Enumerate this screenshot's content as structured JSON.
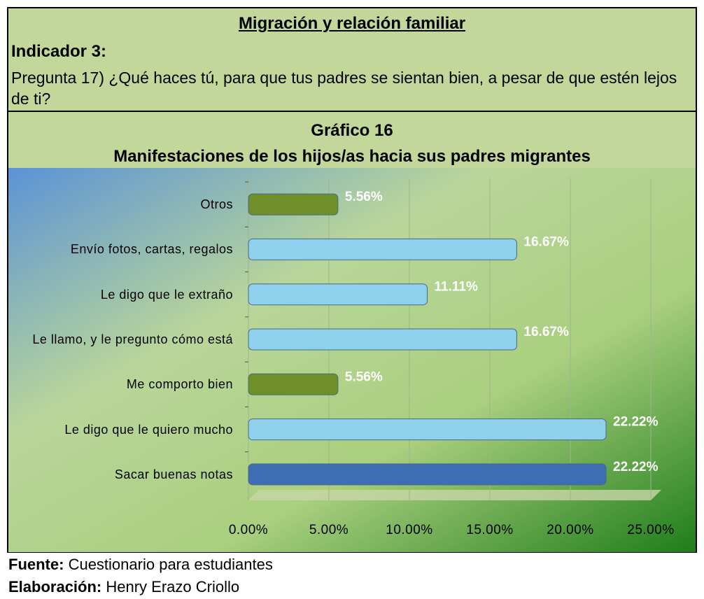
{
  "header": {
    "title": "Migración y relación familiar",
    "indicator": "Indicador 3:",
    "question": "Pregunta 17) ¿Qué haces tú, para que tus padres se sientan bien, a pesar de que estén lejos de ti?"
  },
  "chart_data": {
    "type": "bar",
    "orientation": "horizontal",
    "title": "Gráfico 16",
    "subtitle": "Manifestaciones de los hijos/as hacia sus padres migrantes",
    "categories": [
      "Otros",
      "Envío fotos, cartas, regalos",
      "Le digo que le extraño",
      "Le llamo, y le pregunto cómo está",
      "Me comporto bien",
      "Le digo que le quiero mucho",
      "Sacar buenas notas"
    ],
    "values": [
      5.56,
      16.67,
      11.11,
      16.67,
      5.56,
      22.22,
      22.22
    ],
    "value_labels": [
      "5.56%",
      "16.67%",
      "11.11%",
      "16.67%",
      "5.56%",
      "22.22%",
      "22.22%"
    ],
    "colors": [
      "#6f8f2a",
      "#8fd0ec",
      "#8fd0ec",
      "#8fd0ec",
      "#6f8f2a",
      "#8fd0ec",
      "#3d6eb4"
    ],
    "xlim": [
      0,
      25
    ],
    "xticks": [
      {
        "value": 0,
        "label": "0.00%"
      },
      {
        "value": 5,
        "label": "5.00%"
      },
      {
        "value": 10,
        "label": "10.00%"
      },
      {
        "value": 15,
        "label": "15.00%"
      },
      {
        "value": 20,
        "label": "20.00%"
      },
      {
        "value": 25,
        "label": "25.00%"
      }
    ],
    "grid": true
  },
  "footer": {
    "source_label": "Fuente:",
    "source": "Cuestionario para estudiantes",
    "author_label": "Elaboración:",
    "author": "Henry Erazo Criollo"
  }
}
